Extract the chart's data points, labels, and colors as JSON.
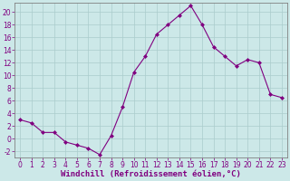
{
  "x": [
    0,
    1,
    2,
    3,
    4,
    5,
    6,
    7,
    8,
    9,
    10,
    11,
    12,
    13,
    14,
    15,
    16,
    17,
    18,
    19,
    20,
    21,
    22,
    23
  ],
  "y": [
    3,
    2.5,
    1,
    1,
    -0.5,
    -1,
    -1.5,
    -2.5,
    0.5,
    5,
    10.5,
    13,
    16.5,
    18,
    19.5,
    21,
    18,
    14.5,
    13,
    11.5,
    12.5,
    12,
    7,
    6.5
  ],
  "line_color": "#800080",
  "marker": "D",
  "marker_size": 2,
  "bg_color": "#cce8e8",
  "grid_color": "#aacccc",
  "xlabel": "Windchill (Refroidissement éolien,°C)",
  "xlim": [
    -0.5,
    23.5
  ],
  "ylim": [
    -3,
    21.5
  ],
  "yticks": [
    -2,
    0,
    2,
    4,
    6,
    8,
    10,
    12,
    14,
    16,
    18,
    20
  ],
  "xticks": [
    0,
    1,
    2,
    3,
    4,
    5,
    6,
    7,
    8,
    9,
    10,
    11,
    12,
    13,
    14,
    15,
    16,
    17,
    18,
    19,
    20,
    21,
    22,
    23
  ],
  "tick_color": "#800080",
  "label_color": "#800080",
  "axis_color": "#808080",
  "font_size_ticks": 5.5,
  "font_size_label": 6.5
}
